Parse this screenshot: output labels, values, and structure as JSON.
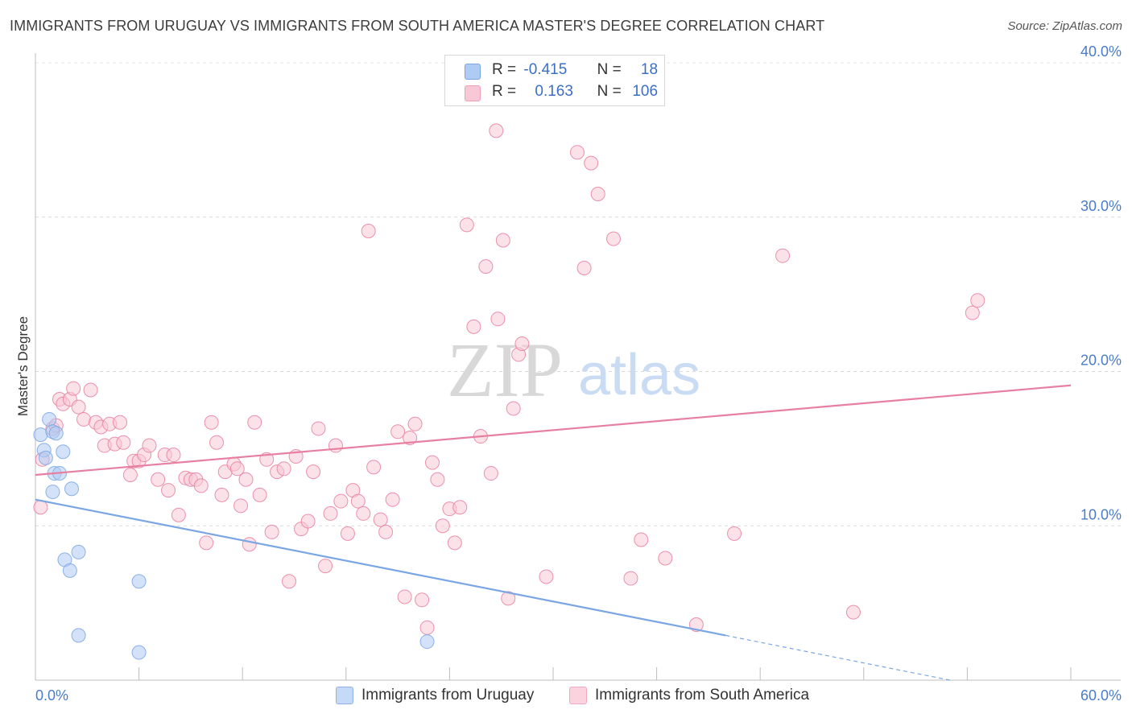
{
  "title": "IMMIGRANTS FROM URUGUAY VS IMMIGRANTS FROM SOUTH AMERICA MASTER'S DEGREE CORRELATION CHART",
  "source": "Source: ZipAtlas.com",
  "watermark": {
    "zip": "ZIP",
    "atlas": "atlas"
  },
  "legend": {
    "rows": [
      {
        "r_label": "R =",
        "r_value": "-0.415",
        "n_label": "N =",
        "n_value": "18",
        "color": "#aecbf3",
        "border": "#7aa6e3"
      },
      {
        "r_label": "R =",
        "r_value": "0.163",
        "n_label": "N =",
        "n_value": "106",
        "color": "#f8c8d6",
        "border": "#eea0b8"
      }
    ]
  },
  "bottom_legend": [
    {
      "label": "Immigrants from Uruguay",
      "color": "#c5daf7",
      "border": "#8fb3e6"
    },
    {
      "label": "Immigrants from South America",
      "color": "#fbd3df",
      "border": "#f0a8bf"
    }
  ],
  "chart_data": {
    "type": "scatter",
    "title": "IMMIGRANTS FROM URUGUAY VS IMMIGRANTS FROM SOUTH AMERICA MASTER'S DEGREE CORRELATION CHART",
    "ylabel": "Master's Degree",
    "xlabel": "",
    "xlim": [
      0,
      60
    ],
    "ylim": [
      0,
      40
    ],
    "x_tick_labels": [
      "0.0%",
      "60.0%"
    ],
    "y_ticks": [
      10,
      20,
      30,
      40
    ],
    "y_tick_labels": [
      "10.0%",
      "20.0%",
      "30.0%",
      "40.0%"
    ],
    "grid": "horizontal dashed",
    "legend_position": "top-center",
    "series": [
      {
        "name": "Immigrants from Uruguay",
        "color": "#7aa6e3",
        "fill": "#aecbf3",
        "trend": {
          "x": [
            0,
            40
          ],
          "y": [
            11.7,
            2.9
          ],
          "dashed_to": [
            53,
            0
          ]
        },
        "points": [
          [
            0.3,
            15.9
          ],
          [
            0.5,
            14.9
          ],
          [
            0.6,
            14.4
          ],
          [
            0.8,
            16.9
          ],
          [
            1.0,
            12.2
          ],
          [
            1.0,
            16.1
          ],
          [
            1.1,
            13.4
          ],
          [
            1.2,
            16.0
          ],
          [
            1.4,
            13.4
          ],
          [
            1.6,
            14.8
          ],
          [
            1.7,
            7.8
          ],
          [
            2.0,
            7.1
          ],
          [
            2.1,
            12.4
          ],
          [
            2.5,
            8.3
          ],
          [
            2.5,
            2.9
          ],
          [
            6.0,
            6.4
          ],
          [
            6.0,
            1.8
          ],
          [
            22.7,
            2.5
          ]
        ]
      },
      {
        "name": "Immigrants from South America",
        "color": "#e77fa2",
        "fill": "#f8c8d6",
        "trend": {
          "x": [
            0,
            60
          ],
          "y": [
            13.3,
            19.1
          ]
        },
        "points": [
          [
            0.3,
            11.2
          ],
          [
            0.4,
            14.3
          ],
          [
            1.0,
            16.3
          ],
          [
            1.2,
            16.5
          ],
          [
            1.4,
            18.2
          ],
          [
            1.6,
            17.9
          ],
          [
            2.0,
            18.2
          ],
          [
            2.2,
            18.9
          ],
          [
            2.5,
            17.7
          ],
          [
            2.8,
            16.9
          ],
          [
            3.2,
            18.8
          ],
          [
            3.5,
            16.7
          ],
          [
            3.8,
            16.4
          ],
          [
            4.0,
            15.2
          ],
          [
            4.3,
            16.6
          ],
          [
            4.6,
            15.3
          ],
          [
            4.9,
            16.7
          ],
          [
            5.1,
            15.4
          ],
          [
            5.5,
            13.3
          ],
          [
            5.7,
            14.2
          ],
          [
            6.0,
            14.2
          ],
          [
            6.3,
            14.6
          ],
          [
            6.6,
            15.2
          ],
          [
            7.1,
            13.0
          ],
          [
            7.5,
            14.6
          ],
          [
            7.7,
            12.3
          ],
          [
            8.0,
            14.6
          ],
          [
            8.3,
            10.7
          ],
          [
            8.7,
            13.1
          ],
          [
            9.0,
            13.0
          ],
          [
            9.3,
            13.0
          ],
          [
            9.6,
            12.6
          ],
          [
            9.9,
            8.9
          ],
          [
            10.2,
            16.7
          ],
          [
            10.5,
            15.4
          ],
          [
            10.8,
            12.0
          ],
          [
            11.0,
            13.5
          ],
          [
            11.5,
            14.0
          ],
          [
            11.7,
            13.7
          ],
          [
            11.9,
            11.3
          ],
          [
            12.2,
            13.0
          ],
          [
            12.4,
            8.8
          ],
          [
            12.7,
            16.7
          ],
          [
            13.0,
            12.0
          ],
          [
            13.4,
            14.3
          ],
          [
            13.7,
            9.6
          ],
          [
            14.0,
            13.5
          ],
          [
            14.4,
            13.7
          ],
          [
            14.7,
            6.4
          ],
          [
            15.1,
            14.5
          ],
          [
            15.4,
            9.8
          ],
          [
            15.8,
            10.3
          ],
          [
            16.1,
            13.5
          ],
          [
            16.4,
            16.3
          ],
          [
            16.8,
            7.4
          ],
          [
            17.1,
            10.8
          ],
          [
            17.4,
            15.2
          ],
          [
            17.7,
            11.6
          ],
          [
            18.1,
            9.5
          ],
          [
            18.4,
            12.3
          ],
          [
            18.7,
            11.6
          ],
          [
            19.0,
            10.8
          ],
          [
            19.3,
            29.1
          ],
          [
            19.6,
            13.8
          ],
          [
            20.0,
            10.4
          ],
          [
            20.3,
            9.6
          ],
          [
            20.7,
            11.7
          ],
          [
            21.0,
            16.1
          ],
          [
            21.4,
            5.4
          ],
          [
            21.7,
            15.7
          ],
          [
            22.0,
            16.6
          ],
          [
            22.4,
            5.2
          ],
          [
            22.7,
            3.4
          ],
          [
            23.0,
            14.1
          ],
          [
            23.3,
            13.0
          ],
          [
            23.6,
            10.0
          ],
          [
            24.0,
            11.1
          ],
          [
            24.3,
            8.9
          ],
          [
            24.6,
            11.2
          ],
          [
            25.0,
            29.5
          ],
          [
            25.4,
            22.9
          ],
          [
            25.8,
            15.8
          ],
          [
            26.1,
            26.8
          ],
          [
            26.4,
            13.4
          ],
          [
            26.8,
            23.4
          ],
          [
            27.1,
            28.5
          ],
          [
            27.4,
            5.3
          ],
          [
            27.7,
            17.6
          ],
          [
            28.0,
            21.1
          ],
          [
            28.2,
            21.8
          ],
          [
            26.7,
            35.6
          ],
          [
            29.6,
            6.7
          ],
          [
            31.4,
            34.2
          ],
          [
            31.8,
            26.7
          ],
          [
            32.2,
            33.5
          ],
          [
            32.6,
            31.5
          ],
          [
            33.5,
            28.6
          ],
          [
            34.5,
            6.6
          ],
          [
            35.1,
            9.1
          ],
          [
            36.5,
            7.9
          ],
          [
            38.3,
            3.6
          ],
          [
            40.5,
            9.5
          ],
          [
            43.3,
            27.5
          ],
          [
            47.4,
            4.4
          ],
          [
            54.3,
            23.8
          ],
          [
            54.6,
            24.6
          ]
        ]
      }
    ]
  }
}
